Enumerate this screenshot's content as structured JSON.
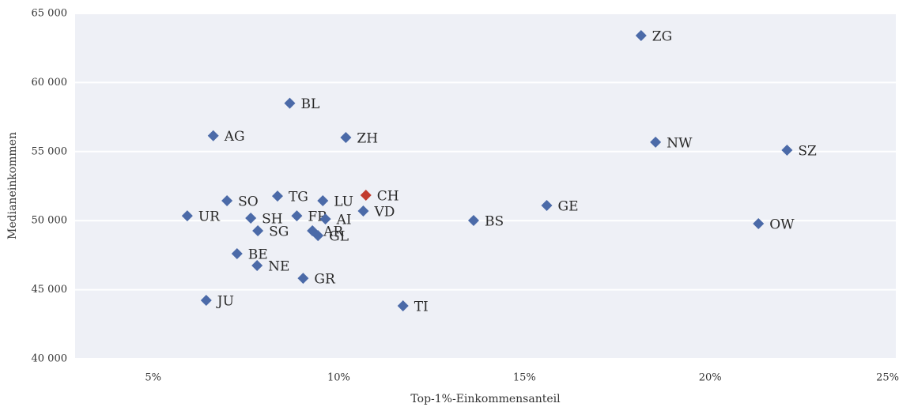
{
  "chart_data": {
    "type": "scatter",
    "xlabel": "Top-1%-Einkommensanteil",
    "ylabel": "Medianeinkommen",
    "labels": [
      "ZG",
      "BL",
      "AG",
      "ZH",
      "NW",
      "SZ",
      "SO",
      "TG",
      "LU",
      "CH",
      "UR",
      "SH",
      "FR",
      "AI",
      "VD",
      "BS",
      "GE",
      "OW",
      "SG",
      "AR",
      "GL",
      "BE",
      "NE",
      "GR",
      "JU",
      "TI"
    ],
    "x": [
      18.14,
      8.68,
      6.62,
      10.19,
      18.53,
      22.07,
      6.99,
      8.35,
      9.57,
      10.73,
      5.92,
      7.63,
      8.87,
      9.64,
      10.66,
      13.63,
      15.6,
      21.3,
      7.82,
      9.29,
      9.44,
      7.26,
      7.8,
      9.04,
      6.43,
      11.73
    ],
    "values": [
      63400,
      58500,
      56150,
      56020,
      55680,
      55100,
      51440,
      51780,
      51440,
      51840,
      50350,
      50180,
      50350,
      50120,
      50700,
      50010,
      51100,
      49780,
      49270,
      49270,
      48920,
      47610,
      46750,
      45830,
      44230,
      43830
    ],
    "colors": [
      "#4b6aa8",
      "#4b6aa8",
      "#4b6aa8",
      "#4b6aa8",
      "#4b6aa8",
      "#4b6aa8",
      "#4b6aa8",
      "#4b6aa8",
      "#4b6aa8",
      "#c23b2e",
      "#4b6aa8",
      "#4b6aa8",
      "#4b6aa8",
      "#4b6aa8",
      "#4b6aa8",
      "#4b6aa8",
      "#4b6aa8",
      "#4b6aa8",
      "#4b6aa8",
      "#4b6aa8",
      "#4b6aa8",
      "#4b6aa8",
      "#4b6aa8",
      "#4b6aa8",
      "#4b6aa8",
      "#4b6aa8"
    ],
    "xlim": [
      2.9,
      25
    ],
    "ylim": [
      40000,
      65000
    ],
    "xticks": [
      {
        "value": 5,
        "label": "5%"
      },
      {
        "value": 10,
        "label": "10%"
      },
      {
        "value": 15,
        "label": "15%"
      },
      {
        "value": 20,
        "label": "20%"
      },
      {
        "value": 25,
        "label": "25%"
      }
    ],
    "yticks": [
      {
        "value": 40000,
        "label": "40 000"
      },
      {
        "value": 45000,
        "label": "45 000"
      },
      {
        "value": 50000,
        "label": "50 000"
      },
      {
        "value": 55000,
        "label": "55 000"
      },
      {
        "value": 60000,
        "label": "60 000"
      },
      {
        "value": 65000,
        "label": "65 000"
      }
    ],
    "grid": true
  }
}
